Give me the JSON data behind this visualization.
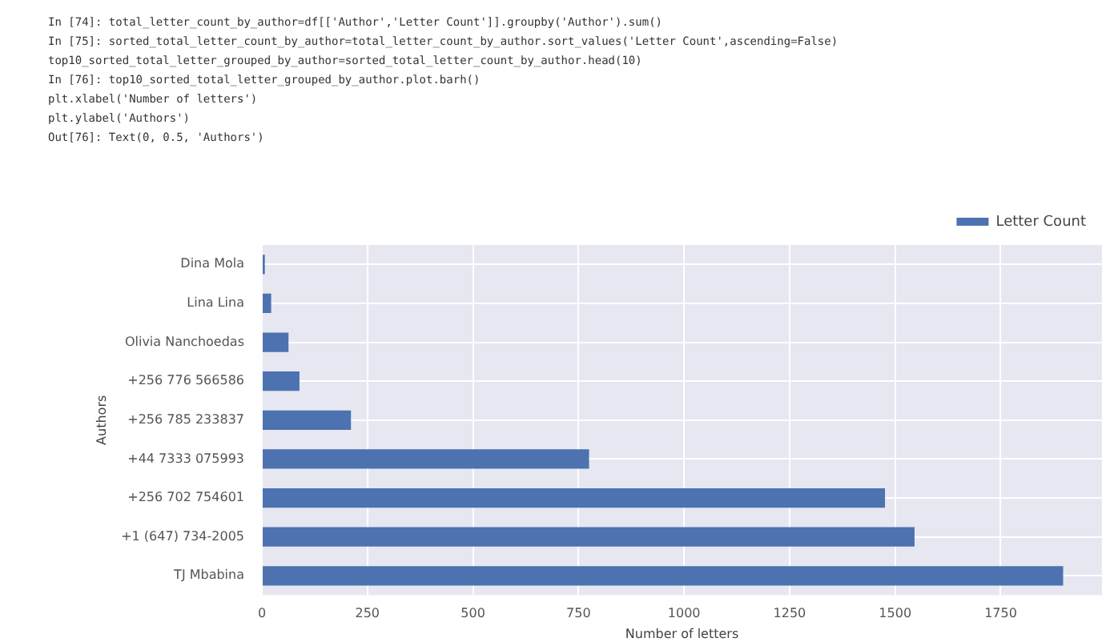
{
  "chart_data": {
    "type": "bar",
    "orientation": "horizontal",
    "xlabel": "Number of letters",
    "ylabel": "Authors",
    "annotations": [
      "In [74]: total_letter_count_by_author=df[['Author','Letter Count']].groupby('Author').sum()",
      "In [75]: sorted_total_letter_count_by_author=total_letter_count_by_author.sort_values('Letter Count',ascending=False)",
      "top10_sorted_total_letter_grouped_by_author=sorted_total_letter_count_by_author.head(10)",
      "In [76]: top10_sorted_total_letter_grouped_by_author.plot.barh()",
      "plt.xlabel('Number of letters')",
      "plt.ylabel('Authors')",
      "Out[76]: Text(0, 0.5, 'Authors')"
    ],
    "categories": [
      "Dina Mola",
      "Lina Lina",
      "Olivia Nanchoedas",
      "+256 776 566586",
      "+256 785 233837",
      "+44 7333 075993",
      "+256 702 754601",
      "+1 (647) 734-2005",
      "TJ Mbabina"
    ],
    "series": [
      {
        "name": "Letter Count",
        "color": "#4c72b0",
        "values": [
          7,
          22,
          63,
          89,
          211,
          775,
          1476,
          1546,
          1898
        ]
      }
    ],
    "xlim": [
      0,
      1990
    ],
    "xticks": [
      0,
      250,
      500,
      750,
      1000,
      1250,
      1500,
      1750
    ],
    "grid": true,
    "legend": "top right"
  }
}
